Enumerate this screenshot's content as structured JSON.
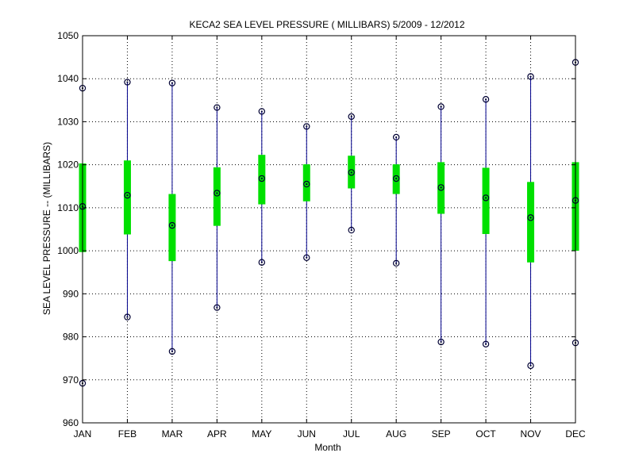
{
  "chart_data": {
    "type": "box",
    "title": "KECA2  SEA LEVEL PRESSURE ( MILLIBARS) 5/2009 - 12/2012",
    "xlabel": "Month",
    "ylabel": "SEA LEVEL PRESSURE -- (MILLIBARS)",
    "ylim": [
      960,
      1050
    ],
    "yticks": [
      960,
      970,
      980,
      990,
      1000,
      1010,
      1020,
      1030,
      1040,
      1050
    ],
    "grid": true,
    "categories": [
      "JAN",
      "FEB",
      "MAR",
      "APR",
      "MAY",
      "JUN",
      "JUL",
      "AUG",
      "SEP",
      "OCT",
      "NOV",
      "DEC"
    ],
    "max": [
      1037.8,
      1039.2,
      1039.0,
      1033.3,
      1032.4,
      1028.9,
      1031.2,
      1026.4,
      1033.5,
      1035.2,
      1040.5,
      1043.8
    ],
    "q3": [
      1020.3,
      1021.0,
      1013.2,
      1019.4,
      1022.3,
      1020.1,
      1022.1,
      1020.1,
      1020.6,
      1019.3,
      1016.0,
      1020.6
    ],
    "median": [
      1010.3,
      1012.9,
      1005.9,
      1013.4,
      1016.8,
      1015.5,
      1018.2,
      1016.8,
      1014.7,
      1012.3,
      1007.7,
      1011.7
    ],
    "q1": [
      999.7,
      1003.8,
      997.6,
      1005.8,
      1010.8,
      1011.5,
      1014.5,
      1013.2,
      1008.6,
      1003.9,
      997.3,
      1000.0
    ],
    "min": [
      969.2,
      984.6,
      976.6,
      986.8,
      997.3,
      998.4,
      1004.8,
      997.1,
      978.8,
      978.3,
      973.3,
      978.6
    ],
    "colors": {
      "whisker": "#00008b",
      "box": "#00e000",
      "marker": "#000033",
      "grid": "#000000"
    }
  }
}
